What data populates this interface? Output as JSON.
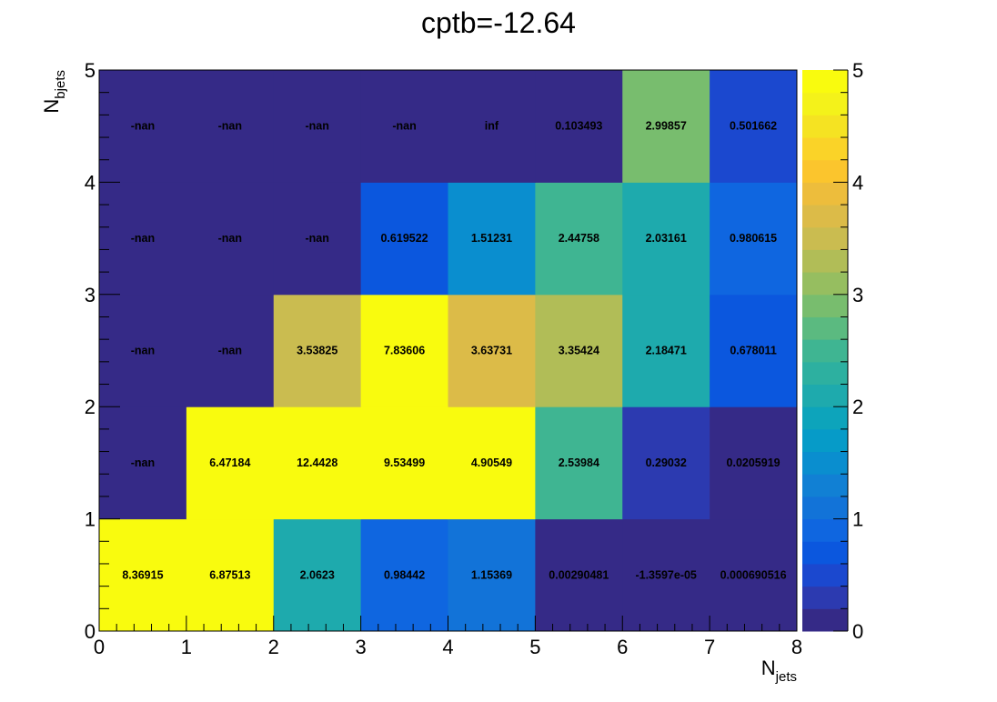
{
  "chart_data": {
    "type": "heatmap",
    "title": "cptb=-12.64",
    "xlabel": {
      "main": "N",
      "sub": "jets"
    },
    "ylabel": {
      "main": "N",
      "sub": "bjets"
    },
    "x_edges": [
      0,
      1,
      2,
      3,
      4,
      5,
      6,
      7,
      8
    ],
    "y_edges": [
      0,
      1,
      2,
      3,
      4,
      5
    ],
    "xlim": [
      0,
      8
    ],
    "ylim": [
      0,
      5
    ],
    "x_ticks": [
      "0",
      "1",
      "2",
      "3",
      "4",
      "5",
      "6",
      "7",
      "8"
    ],
    "y_ticks": [
      "0",
      "1",
      "2",
      "3",
      "4",
      "5"
    ],
    "z_range": [
      0,
      5
    ],
    "z_ticks": [
      "0",
      "1",
      "2",
      "3",
      "4",
      "5"
    ],
    "colormap": "parula",
    "rows": [
      {
        "y_bin": [
          0,
          1
        ],
        "labels": [
          "8.36915",
          "6.87513",
          "2.0623",
          "0.98442",
          "1.15369",
          "0.00290481",
          "-1.3597e-05",
          "0.000690516"
        ],
        "values": [
          8.36915,
          6.87513,
          2.0623,
          0.98442,
          1.15369,
          0.00290481,
          -1.3597e-05,
          0.000690516
        ]
      },
      {
        "y_bin": [
          1,
          2
        ],
        "labels": [
          "-nan",
          "6.47184",
          "12.4428",
          "9.53499",
          "4.90549",
          "2.53984",
          "0.29032",
          "0.0205919"
        ],
        "values": [
          null,
          6.47184,
          12.4428,
          9.53499,
          4.90549,
          2.53984,
          0.29032,
          0.0205919
        ]
      },
      {
        "y_bin": [
          2,
          3
        ],
        "labels": [
          "-nan",
          "-nan",
          "3.53825",
          "7.83606",
          "3.63731",
          "3.35424",
          "2.18471",
          "0.678011"
        ],
        "values": [
          null,
          null,
          3.53825,
          7.83606,
          3.63731,
          3.35424,
          2.18471,
          0.678011
        ]
      },
      {
        "y_bin": [
          3,
          4
        ],
        "labels": [
          "-nan",
          "-nan",
          "-nan",
          "0.619522",
          "1.51231",
          "2.44758",
          "2.03161",
          "0.980615"
        ],
        "values": [
          null,
          null,
          null,
          0.619522,
          1.51231,
          2.44758,
          2.03161,
          0.980615
        ]
      },
      {
        "y_bin": [
          4,
          5
        ],
        "labels": [
          "-nan",
          "-nan",
          "-nan",
          "-nan",
          "inf",
          "0.103493",
          "2.99857",
          "0.501662"
        ],
        "values": [
          null,
          null,
          null,
          null,
          null,
          0.103493,
          2.99857,
          0.501662
        ]
      }
    ],
    "colors": {
      "palette": [
        "#352a87",
        "#2c3ab0",
        "#1b48cf",
        "#0b57de",
        "#0f66e0",
        "#1273d8",
        "#1180d4",
        "#0a8ecf",
        "#069bc8",
        "#0da4bb",
        "#1eaaad",
        "#2db0a0",
        "#3fb592",
        "#5bba80",
        "#78bd6e",
        "#96be60",
        "#b1bd57",
        "#cabc50",
        "#dcbb48",
        "#edbd3c",
        "#fbc52d",
        "#fad328",
        "#f5e322",
        "#f4f21a",
        "#f9fb0e"
      ]
    }
  }
}
